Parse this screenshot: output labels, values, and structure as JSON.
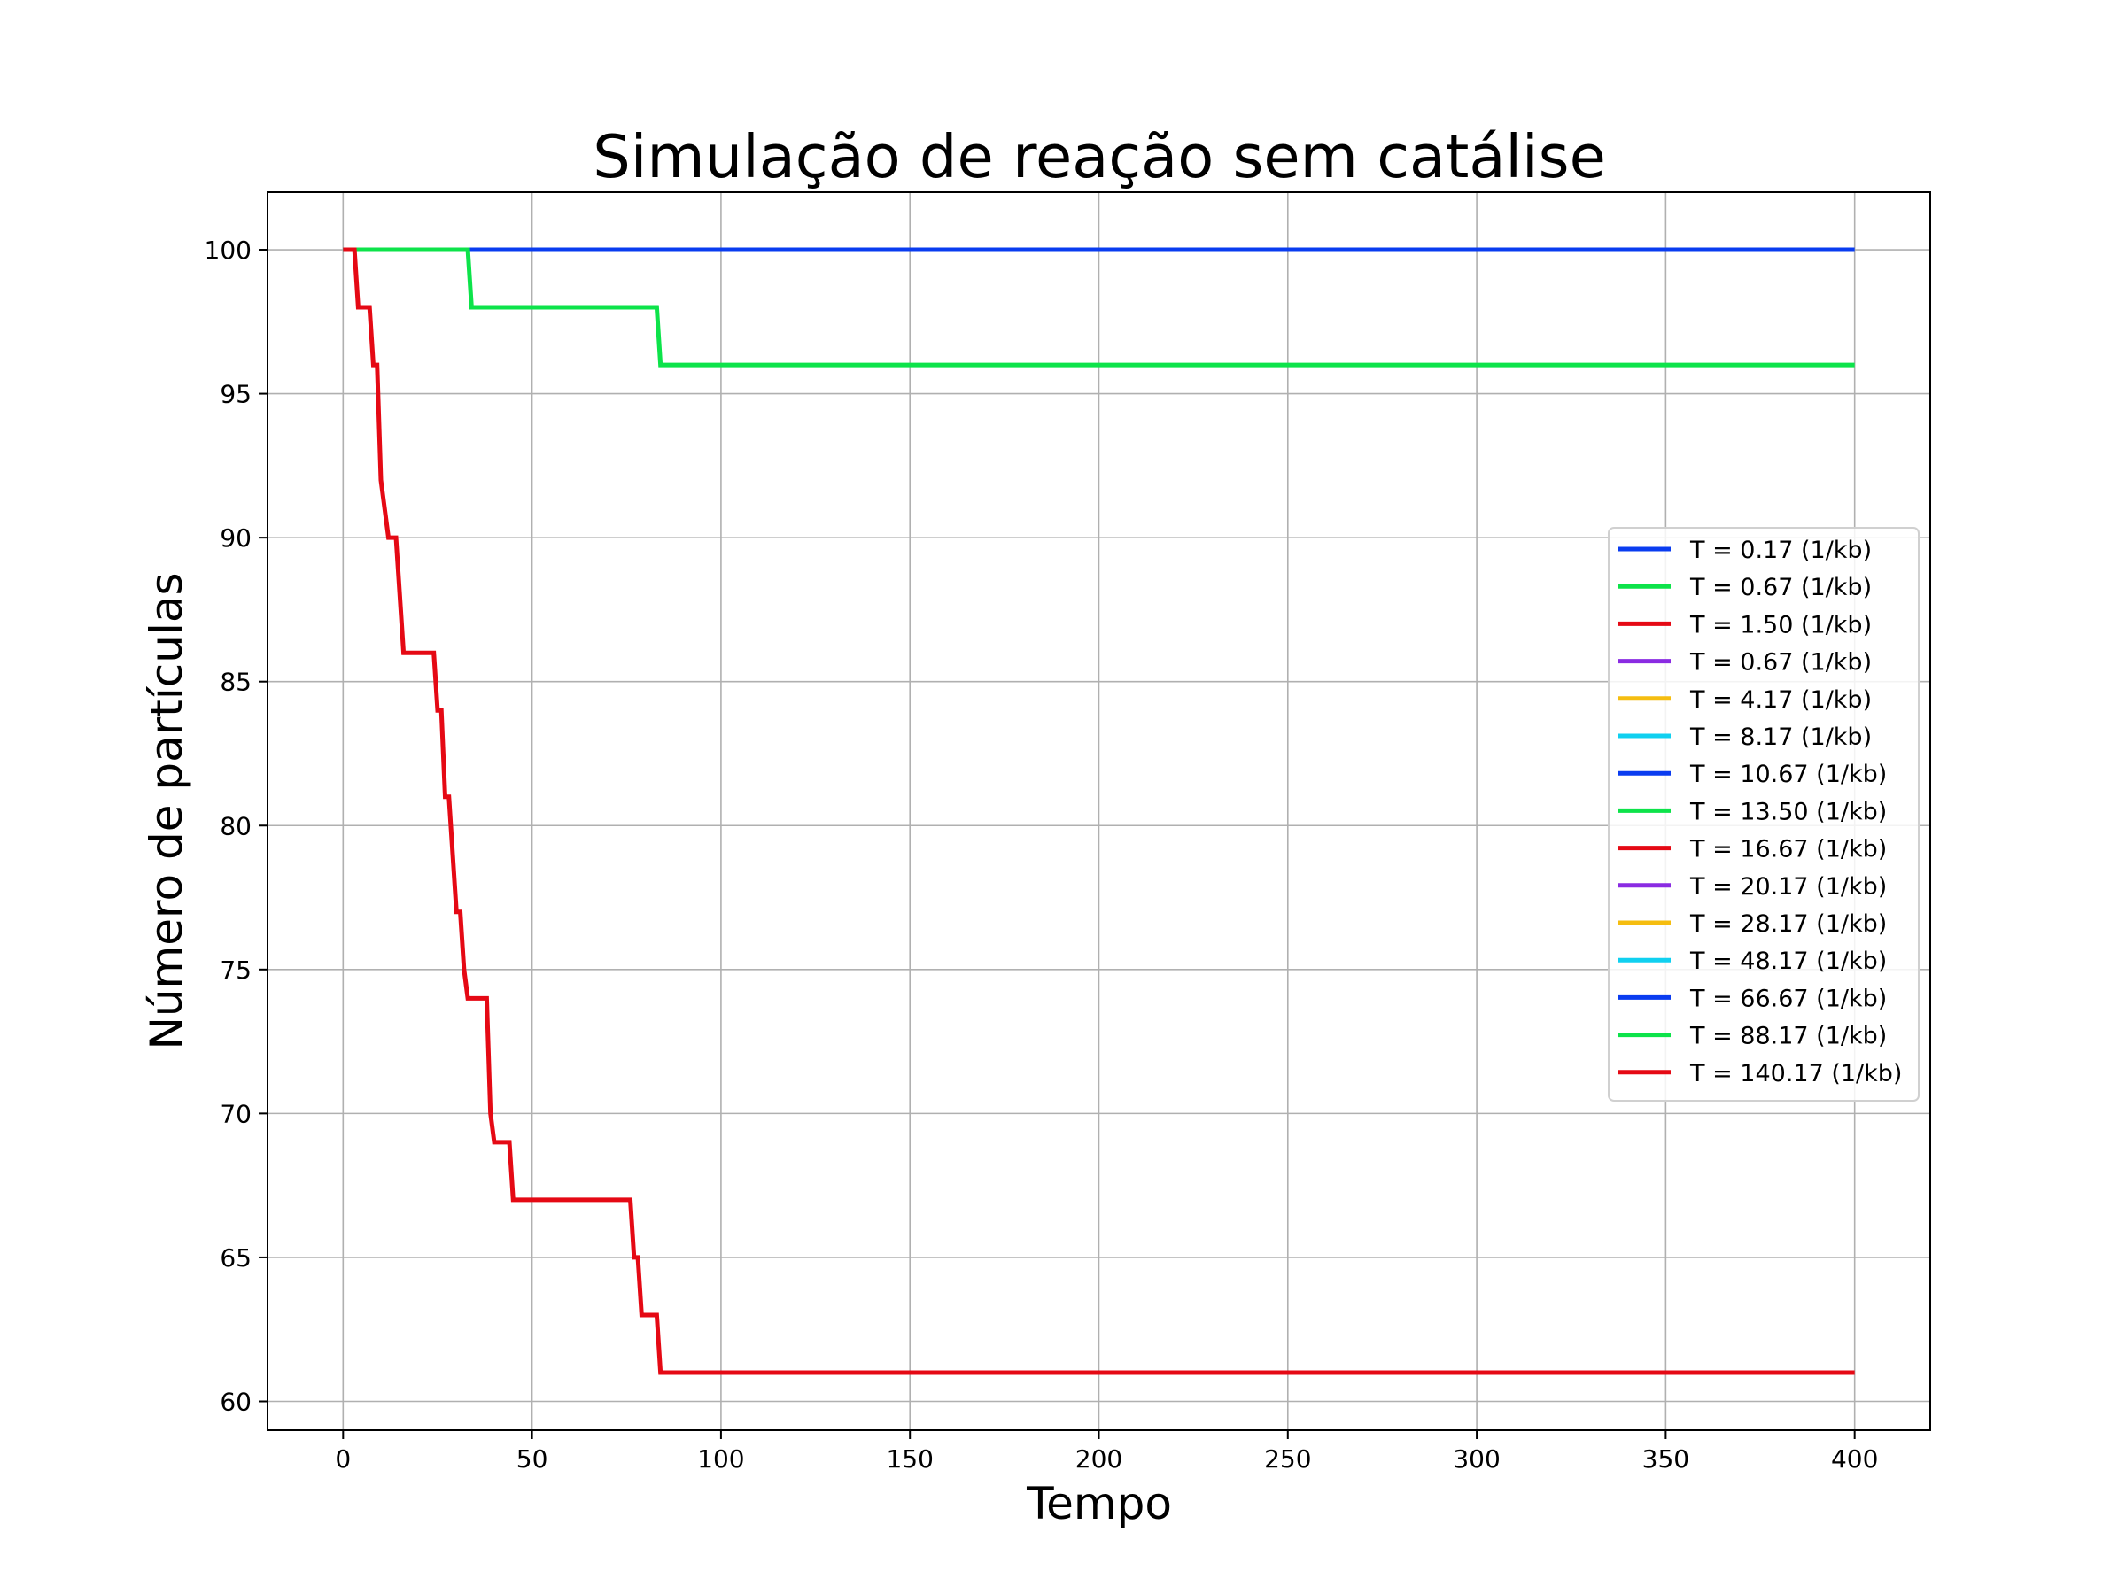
{
  "chart_data": {
    "type": "line",
    "title": "Simulação de reação sem catálise",
    "xlabel": "Tempo",
    "ylabel": "Número de partículas",
    "xlim": [
      -20,
      420
    ],
    "ylim": [
      59,
      102
    ],
    "xticks": [
      0,
      50,
      100,
      150,
      200,
      250,
      300,
      350,
      400
    ],
    "yticks": [
      60,
      65,
      70,
      75,
      80,
      85,
      90,
      95,
      100
    ],
    "grid": true,
    "legend_position": "center-right",
    "series": [
      {
        "name": "T = 0.17 (1/kb)",
        "color": "#0a3cf0",
        "x": [
          0,
          400
        ],
        "y": [
          100,
          100
        ]
      },
      {
        "name": "T = 0.67 (1/kb)",
        "color": "#0de34a",
        "x": [
          0,
          33,
          34,
          83,
          84,
          400
        ],
        "y": [
          100,
          100,
          98,
          98,
          96,
          96
        ]
      },
      {
        "name": "T = 1.50 (1/kb)",
        "color": "#e50914",
        "x": [
          0,
          3,
          4,
          7,
          8,
          9,
          10,
          12,
          13,
          14,
          16,
          24,
          25,
          26,
          27,
          28,
          30,
          31,
          32,
          33,
          34,
          38,
          39,
          40,
          44,
          45,
          76,
          77,
          78,
          79,
          83,
          84,
          400
        ],
        "y": [
          100,
          100,
          98,
          98,
          96,
          96,
          92,
          90,
          90,
          90,
          86,
          86,
          84,
          84,
          81,
          81,
          77,
          77,
          75,
          74,
          74,
          74,
          70,
          69,
          69,
          67,
          67,
          65,
          65,
          63,
          63,
          61,
          61
        ]
      },
      {
        "name": "T = 0.67 (1/kb)",
        "color": "#8a2be2",
        "x": [],
        "y": []
      },
      {
        "name": "T = 4.17 (1/kb)",
        "color": "#f5bd10",
        "x": [],
        "y": []
      },
      {
        "name": "T = 8.17 (1/kb)",
        "color": "#10d0f0",
        "x": [],
        "y": []
      },
      {
        "name": "T = 10.67 (1/kb)",
        "color": "#0a3cf0",
        "x": [],
        "y": []
      },
      {
        "name": "T = 13.50 (1/kb)",
        "color": "#0de34a",
        "x": [],
        "y": []
      },
      {
        "name": "T = 16.67 (1/kb)",
        "color": "#e50914",
        "x": [],
        "y": []
      },
      {
        "name": "T = 20.17 (1/kb)",
        "color": "#8a2be2",
        "x": [],
        "y": []
      },
      {
        "name": "T = 28.17 (1/kb)",
        "color": "#f5bd10",
        "x": [],
        "y": []
      },
      {
        "name": "T = 48.17 (1/kb)",
        "color": "#10d0f0",
        "x": [],
        "y": []
      },
      {
        "name": "T = 66.67 (1/kb)",
        "color": "#0a3cf0",
        "x": [],
        "y": []
      },
      {
        "name": "T = 88.17 (1/kb)",
        "color": "#0de34a",
        "x": [],
        "y": []
      },
      {
        "name": "T = 140.17 (1/kb)",
        "color": "#e50914",
        "x": [],
        "y": []
      }
    ]
  }
}
